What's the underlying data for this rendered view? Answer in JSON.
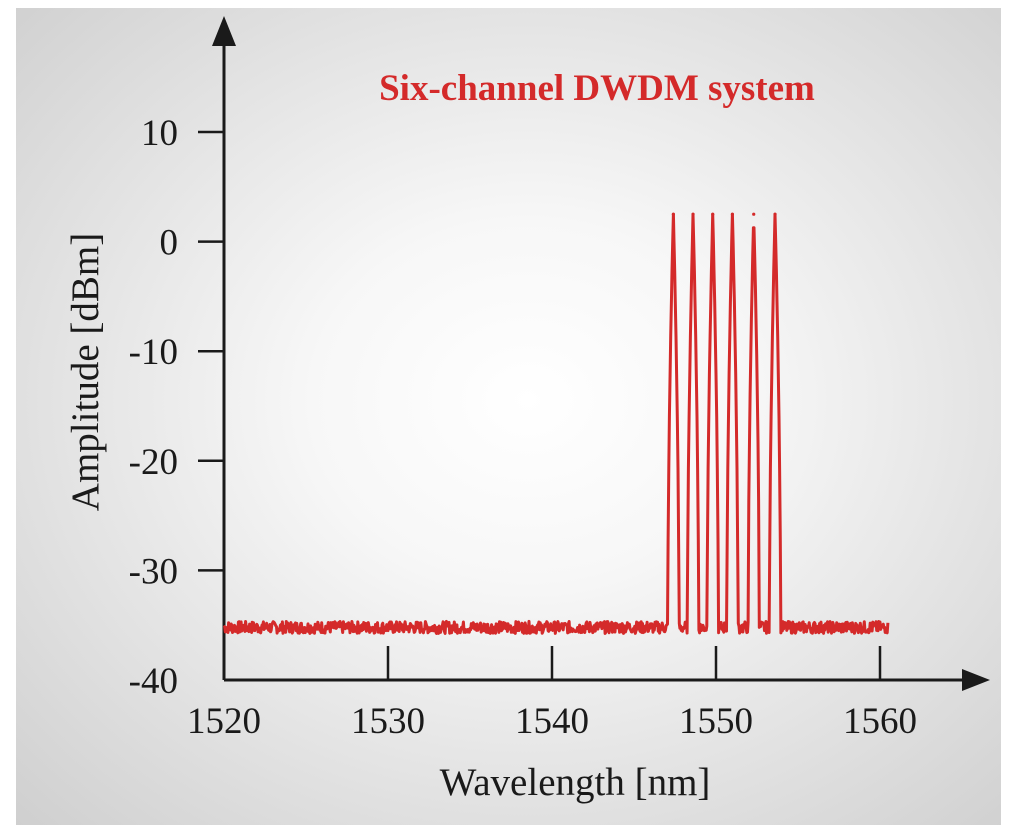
{
  "chart_data": {
    "type": "line",
    "title": "Six-channel DWDM system",
    "xlabel": "Wavelength [nm]",
    "ylabel": "Amplitude [dBm]",
    "xlim": [
      1520,
      1560
    ],
    "ylim": [
      -40,
      10
    ],
    "x_ticks": [
      1520,
      1530,
      1540,
      1550,
      1560
    ],
    "y_ticks": [
      10,
      0,
      -10,
      -20,
      -30,
      -40
    ],
    "x_tick_labels": [
      "1520",
      "1530",
      "1540",
      "1550",
      "1560"
    ],
    "y_tick_labels": [
      "10",
      "0",
      "-10",
      "-20",
      "-30",
      "-40"
    ],
    "grid": false,
    "legend": false,
    "noise_floor_dBm": -35.2,
    "series": [
      {
        "color": "#d42a2a",
        "x_range": [
          1520,
          1560.5
        ],
        "channels": [
          {
            "center_nm": 1547.4,
            "peak_dBm": 2.5
          },
          {
            "center_nm": 1548.6,
            "peak_dBm": 2.5
          },
          {
            "center_nm": 1549.8,
            "peak_dBm": 2.5
          },
          {
            "center_nm": 1551.0,
            "peak_dBm": 2.5
          },
          {
            "center_nm": 1552.3,
            "peak_dBm": 2.5
          },
          {
            "center_nm": 1553.6,
            "peak_dBm": 2.5
          }
        ]
      }
    ],
    "colors": {
      "axis": "#1a1a1a",
      "series": "#d42a2a",
      "title": "#d42a2a"
    }
  }
}
